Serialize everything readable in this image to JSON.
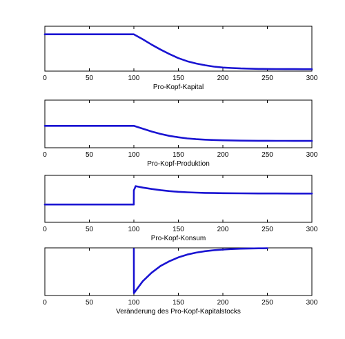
{
  "colors": {
    "line": "#1a14d2",
    "axes": "#000000",
    "background": "#ffffff"
  },
  "chart_data": [
    {
      "type": "line",
      "xlabel": "Pro-Kopf-Kapital",
      "xlim": [
        0,
        300
      ],
      "ylim": [
        0,
        1
      ],
      "xticks": [
        "0",
        "50",
        "100",
        "150",
        "200",
        "250",
        "300"
      ],
      "grid": false,
      "series": [
        {
          "x": [
            0,
            100,
            110,
            120,
            130,
            140,
            150,
            160,
            170,
            180,
            190,
            200,
            210,
            220,
            230,
            240,
            250,
            260,
            270,
            280,
            290,
            300
          ],
          "y": [
            0.82,
            0.82,
            0.71,
            0.59,
            0.48,
            0.38,
            0.29,
            0.22,
            0.17,
            0.13,
            0.1,
            0.08,
            0.07,
            0.06,
            0.055,
            0.05,
            0.048,
            0.046,
            0.045,
            0.044,
            0.043,
            0.043
          ]
        }
      ]
    },
    {
      "type": "line",
      "xlabel": "Pro-Kopf-Produktion",
      "xlim": [
        0,
        300
      ],
      "ylim": [
        0,
        1
      ],
      "xticks": [
        "0",
        "50",
        "100",
        "150",
        "200",
        "250",
        "300"
      ],
      "grid": false,
      "series": [
        {
          "x": [
            0,
            100,
            110,
            120,
            130,
            140,
            150,
            160,
            170,
            180,
            190,
            200,
            210,
            220,
            230,
            240,
            250,
            260,
            270,
            280,
            290,
            300
          ],
          "y": [
            0.46,
            0.46,
            0.4,
            0.34,
            0.29,
            0.25,
            0.22,
            0.195,
            0.18,
            0.17,
            0.162,
            0.157,
            0.153,
            0.15,
            0.148,
            0.147,
            0.146,
            0.145,
            0.145,
            0.144,
            0.144,
            0.144
          ]
        }
      ]
    },
    {
      "type": "line",
      "xlabel": "Pro-Kopf-Konsum",
      "xlim": [
        0,
        300
      ],
      "ylim": [
        0,
        1
      ],
      "xticks": [
        "0",
        "50",
        "100",
        "150",
        "200",
        "250",
        "300"
      ],
      "grid": false,
      "series": [
        {
          "x": [
            0,
            99.9,
            100,
            102,
            110,
            120,
            130,
            140,
            150,
            160,
            170,
            180,
            190,
            200,
            220,
            240,
            260,
            280,
            300
          ],
          "y": [
            0.38,
            0.38,
            0.68,
            0.77,
            0.74,
            0.71,
            0.685,
            0.665,
            0.65,
            0.64,
            0.632,
            0.627,
            0.623,
            0.62,
            0.617,
            0.615,
            0.614,
            0.613,
            0.613
          ]
        }
      ]
    },
    {
      "type": "line",
      "xlabel": "Veränderung des Pro-Kopf-Kapitalstocks",
      "xlim": [
        0,
        300
      ],
      "ylim": [
        0,
        1
      ],
      "xticks": [
        "0",
        "50",
        "100",
        "150",
        "200",
        "250",
        "300"
      ],
      "grid": false,
      "series": [
        {
          "x": [
            100,
            100.1,
            102,
            110,
            120,
            130,
            140,
            150,
            160,
            170,
            180,
            190,
            200,
            210,
            220,
            230,
            240,
            250
          ],
          "y": [
            0.98,
            0.05,
            0.1,
            0.3,
            0.48,
            0.62,
            0.72,
            0.8,
            0.86,
            0.9,
            0.93,
            0.95,
            0.965,
            0.975,
            0.982,
            0.987,
            0.99,
            0.992
          ]
        }
      ]
    }
  ]
}
